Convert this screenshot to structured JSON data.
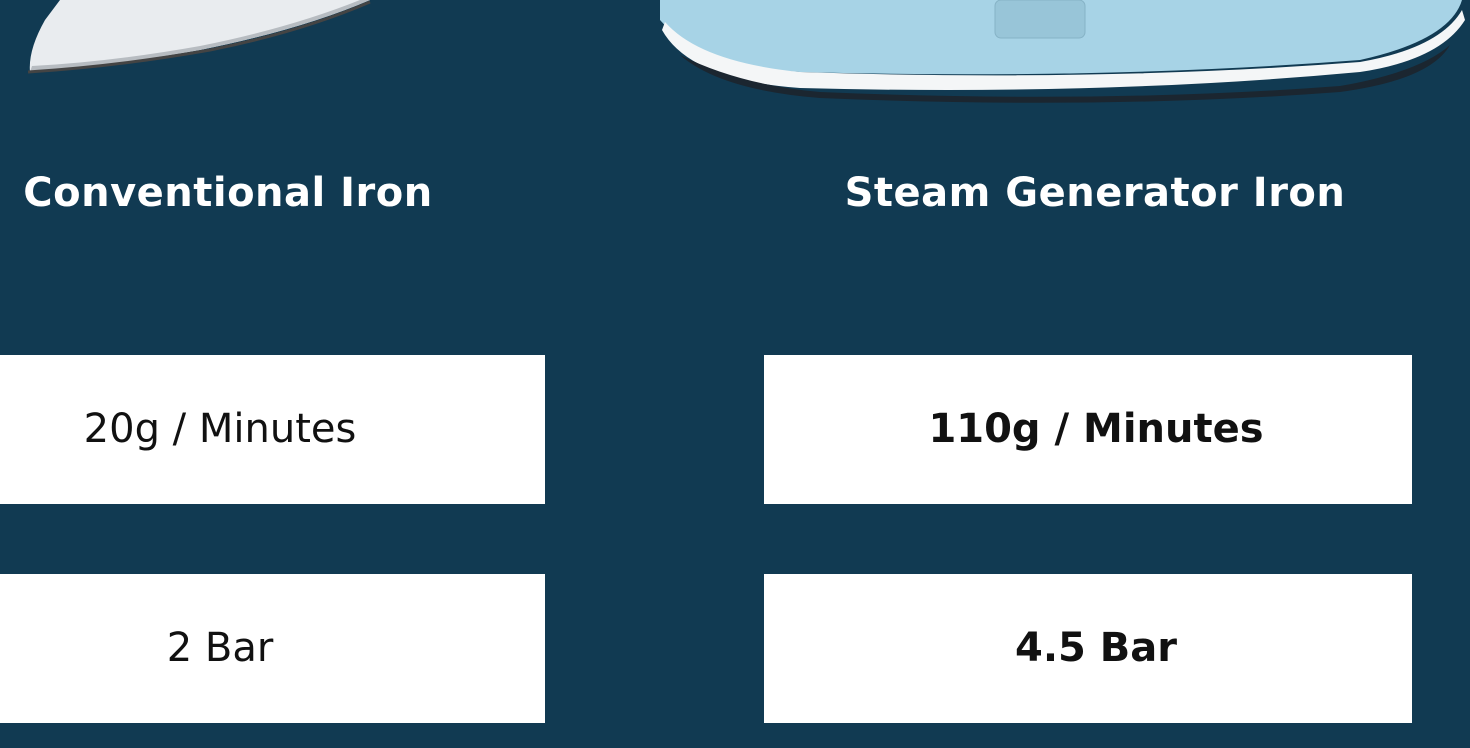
{
  "columns": [
    {
      "title": "Conventional Iron",
      "rows": [
        "20g / Minutes",
        "2 Bar"
      ]
    },
    {
      "title": "Steam Generator Iron",
      "rows": [
        "110g / Minutes",
        "4.5 Bar"
      ]
    }
  ]
}
